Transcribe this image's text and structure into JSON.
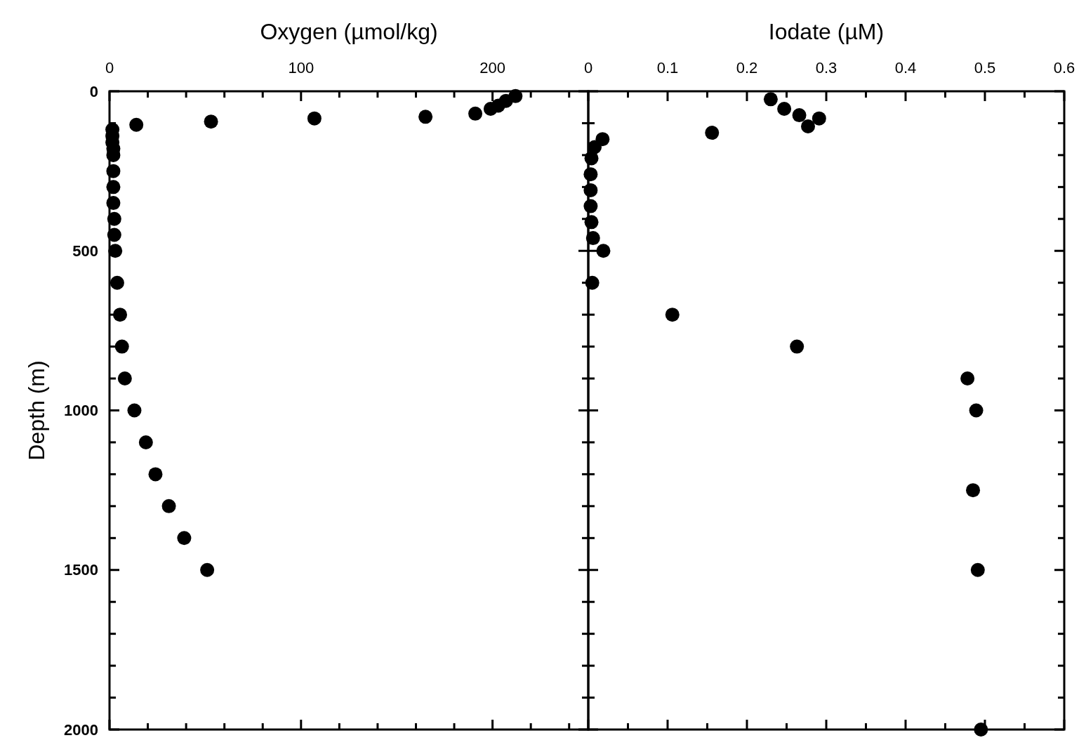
{
  "chart_data": [
    {
      "type": "scatter",
      "xlabel": "Oxygen (µmol/kg)",
      "ylabel": "Depth (m)",
      "marker": "circle",
      "grid": false,
      "xlim": [
        0,
        250
      ],
      "ylim": [
        2000,
        0
      ],
      "xticks": [
        0,
        {
          "value": 20,
          "label": null
        },
        {
          "value": 40,
          "label": null
        },
        {
          "value": 60,
          "label": null
        },
        {
          "value": 80,
          "label": null
        },
        100,
        {
          "value": 120,
          "label": null
        },
        {
          "value": 140,
          "label": null
        },
        {
          "value": 160,
          "label": null
        },
        {
          "value": 180,
          "label": null
        },
        200,
        {
          "value": 220,
          "label": null
        },
        {
          "value": 240,
          "label": null
        }
      ],
      "yticks": [
        0,
        {
          "value": 100,
          "label": null
        },
        {
          "value": 200,
          "label": null
        },
        {
          "value": 300,
          "label": null
        },
        {
          "value": 400,
          "label": null
        },
        500,
        {
          "value": 600,
          "label": null
        },
        {
          "value": 700,
          "label": null
        },
        {
          "value": 800,
          "label": null
        },
        {
          "value": 900,
          "label": null
        },
        1000,
        {
          "value": 1100,
          "label": null
        },
        {
          "value": 1200,
          "label": null
        },
        {
          "value": 1300,
          "label": null
        },
        {
          "value": 1400,
          "label": null
        },
        1500,
        {
          "value": 1600,
          "label": null
        },
        {
          "value": 1700,
          "label": null
        },
        {
          "value": 1800,
          "label": null
        },
        {
          "value": 1900,
          "label": null
        },
        2000
      ],
      "series": [
        {
          "color": "#000000",
          "x": [
            212,
            207,
            203,
            199,
            191,
            165,
            107,
            53,
            14,
            1.5,
            1.5,
            1.5,
            2,
            2,
            2,
            2,
            2,
            2.5,
            2.5,
            3,
            4,
            5.5,
            6.5,
            8,
            13,
            19,
            24,
            31,
            39,
            51
          ],
          "values": [
            15,
            30,
            45,
            55,
            70,
            80,
            85,
            95,
            105,
            120,
            140,
            160,
            180,
            200,
            250,
            300,
            350,
            400,
            450,
            500,
            600,
            700,
            800,
            900,
            1000,
            1100,
            1200,
            1300,
            1400,
            1500
          ]
        }
      ]
    },
    {
      "type": "scatter",
      "xlabel": "Iodate (µM)",
      "marker": "circle",
      "grid": false,
      "tick_labels": "x",
      "xlim": [
        0,
        0.6
      ],
      "ylim": [
        2000,
        0
      ],
      "xticks": [
        0,
        {
          "value": 0.05,
          "label": null
        },
        0.1,
        {
          "value": 0.15,
          "label": null
        },
        0.2,
        {
          "value": 0.25,
          "label": null
        },
        0.3,
        {
          "value": 0.35,
          "label": null
        },
        0.4,
        {
          "value": 0.45,
          "label": null
        },
        0.5,
        {
          "value": 0.55,
          "label": null
        },
        0.6
      ],
      "yticks": [
        0,
        {
          "value": 100,
          "label": null
        },
        {
          "value": 200,
          "label": null
        },
        {
          "value": 300,
          "label": null
        },
        {
          "value": 400,
          "label": null
        },
        500,
        {
          "value": 600,
          "label": null
        },
        {
          "value": 700,
          "label": null
        },
        {
          "value": 800,
          "label": null
        },
        {
          "value": 900,
          "label": null
        },
        1000,
        {
          "value": 1100,
          "label": null
        },
        {
          "value": 1200,
          "label": null
        },
        {
          "value": 1300,
          "label": null
        },
        {
          "value": 1400,
          "label": null
        },
        1500,
        {
          "value": 1600,
          "label": null
        },
        {
          "value": 1700,
          "label": null
        },
        {
          "value": 1800,
          "label": null
        },
        {
          "value": 1900,
          "label": null
        },
        2000
      ],
      "series": [
        {
          "color": "#000000",
          "x": [
            0.23,
            0.247,
            0.266,
            0.291,
            0.277,
            0.156,
            0.018,
            0.008,
            0.004,
            0.003,
            0.003,
            0.003,
            0.004,
            0.006,
            0.019,
            0.005,
            0.106,
            0.263,
            0.478,
            0.489,
            0.485,
            0.491,
            0.495
          ],
          "values": [
            25,
            55,
            75,
            85,
            110,
            130,
            150,
            175,
            210,
            260,
            310,
            360,
            410,
            460,
            500,
            600,
            700,
            800,
            900,
            1000,
            1250,
            1500,
            2000
          ]
        }
      ]
    }
  ]
}
